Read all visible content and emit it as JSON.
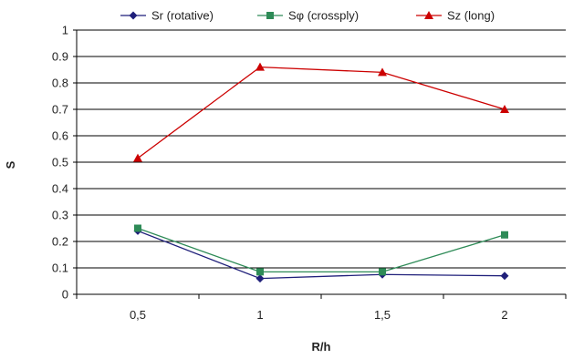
{
  "chart_data": {
    "type": "line",
    "title": "",
    "xlabel": "R/h",
    "ylabel": "S",
    "categories": [
      "0,5",
      "1",
      "1,5",
      "2"
    ],
    "ylim": [
      0,
      1
    ],
    "yticks": [
      "0",
      "0.1",
      "0.2",
      "0.3",
      "0.4",
      "0.5",
      "0.6",
      "0.7",
      "0.8",
      "0.9",
      "1"
    ],
    "grid": "horizontal",
    "legend_position": "top",
    "series": [
      {
        "name": "Sr (rotative)",
        "values": [
          0.24,
          0.06,
          0.075,
          0.07
        ],
        "color": "#1f1f7a",
        "marker": "diamond"
      },
      {
        "name": "Sφ (crossply)",
        "values": [
          0.25,
          0.085,
          0.085,
          0.225
        ],
        "color": "#2e8b57",
        "marker": "square"
      },
      {
        "name": "Sz (long)",
        "values": [
          0.515,
          0.86,
          0.84,
          0.7
        ],
        "color": "#cc0000",
        "marker": "triangle"
      }
    ]
  }
}
